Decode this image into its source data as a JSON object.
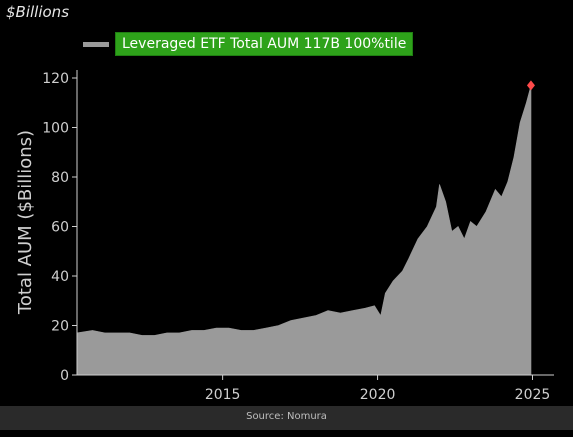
{
  "header": {
    "units_label": "$Billions"
  },
  "legend": {
    "label": "Leveraged ETF Total AUM 117B 100%tile"
  },
  "source": {
    "text": "Source: Nomura"
  },
  "colors": {
    "background": "#000000",
    "area": "#9a9a9a",
    "axis": "#cfcfcf",
    "legend_bg": "#2ea21a",
    "legend_border": "#1f7f12",
    "legend_swatch": "#9a9a9a",
    "marker": "#ff4a4a"
  },
  "chart_data": {
    "type": "area",
    "title": "",
    "xlabel": "",
    "ylabel": "Total AUM ($Billions)",
    "xlim": [
      2010.3,
      2025.5
    ],
    "ylim": [
      0,
      120
    ],
    "yticks": [
      0,
      20,
      40,
      60,
      80,
      100,
      120
    ],
    "xticks": [
      2015,
      2020,
      2025
    ],
    "grid": false,
    "legend_position": "top-left",
    "series": [
      {
        "name": "Leveraged ETF Total AUM 117B 100%tile",
        "x": [
          2010.3,
          2010.8,
          2011.2,
          2011.6,
          2012.0,
          2012.4,
          2012.8,
          2013.2,
          2013.6,
          2014.0,
          2014.4,
          2014.8,
          2015.2,
          2015.6,
          2016.0,
          2016.4,
          2016.8,
          2017.2,
          2017.6,
          2018.0,
          2018.4,
          2018.8,
          2019.2,
          2019.6,
          2019.9,
          2020.1,
          2020.25,
          2020.5,
          2020.8,
          2021.0,
          2021.3,
          2021.6,
          2021.9,
          2022.0,
          2022.2,
          2022.4,
          2022.6,
          2022.8,
          2023.0,
          2023.2,
          2023.5,
          2023.8,
          2024.0,
          2024.2,
          2024.4,
          2024.6,
          2024.8,
          2024.95
        ],
        "values": [
          17,
          18,
          17,
          17,
          17,
          16,
          16,
          17,
          17,
          18,
          18,
          19,
          19,
          18,
          18,
          19,
          20,
          22,
          23,
          24,
          26,
          25,
          26,
          27,
          28,
          24,
          33,
          38,
          42,
          47,
          55,
          60,
          68,
          77,
          70,
          58,
          60,
          55,
          62,
          60,
          66,
          75,
          72,
          78,
          88,
          102,
          110,
          117
        ]
      }
    ],
    "annotations": [
      {
        "type": "marker",
        "x": 2024.95,
        "y": 117,
        "label": ""
      }
    ]
  }
}
